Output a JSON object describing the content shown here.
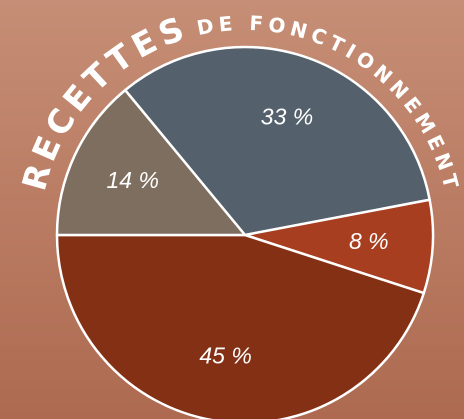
{
  "chart_data": {
    "type": "pie",
    "title": [
      "RECETTES",
      "DE FONCTIONNEMENT"
    ],
    "categories": [
      null,
      null,
      null,
      null
    ],
    "values": [
      33,
      8,
      45,
      14
    ],
    "value_labels": [
      "33 %",
      "8 %",
      "45 %",
      "14 %"
    ],
    "colors": [
      "#54616c",
      "#a83e20",
      "#843014",
      "#7e6e5f"
    ]
  }
}
